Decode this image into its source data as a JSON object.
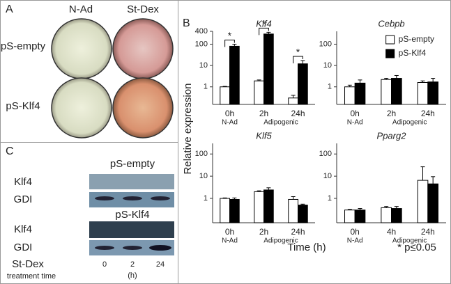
{
  "panel_a": {
    "label": "A",
    "columns": [
      "N-Ad",
      "St-Dex"
    ],
    "rows": [
      "pS-empty",
      "pS-Klf4"
    ]
  },
  "panel_b": {
    "label": "B",
    "y_label": "Relative expression",
    "x_label": "Time (h)",
    "footnote": "* p≤0.05"
  },
  "panel_c": {
    "label": "C",
    "groups": [
      {
        "title": "pS-empty",
        "rows": [
          "Klf4",
          "GDI"
        ]
      },
      {
        "title": "pS-Klf4",
        "rows": [
          "Klf4",
          "GDI"
        ]
      }
    ],
    "treatment": "St-Dex",
    "treatment_sub": "treatment time",
    "times": [
      "0",
      "2",
      "24"
    ],
    "time_unit": "(h)"
  },
  "chart_data": [
    {
      "type": "bar",
      "title": "Klf4",
      "log_scale": true,
      "categories": [
        "0h",
        "2h",
        "24h"
      ],
      "group_labels": [
        "N-Ad",
        "Adipogenic"
      ],
      "ylim": [
        0.15,
        400
      ],
      "yticks": [
        1,
        10,
        100,
        400
      ],
      "series": [
        {
          "color": "#ffffff",
          "values": [
            1,
            1.9,
            0.3
          ],
          "errors": [
            0.05,
            0.2,
            0.1
          ]
        },
        {
          "color": "#000000",
          "values": [
            80,
            300,
            12
          ],
          "errors": [
            20,
            60,
            5
          ]
        }
      ],
      "annotations": [
        "*",
        "*",
        "*"
      ]
    },
    {
      "type": "bar",
      "title": "Cebpb",
      "log_scale": true,
      "categories": [
        "0h",
        "2h",
        "24h"
      ],
      "group_labels": [
        "N-Ad",
        "Adipogenic"
      ],
      "ylim": [
        0.15,
        400
      ],
      "yticks": [
        1,
        10,
        100
      ],
      "legend": "upper right",
      "series": [
        {
          "name": "pS-empty",
          "color": "#ffffff",
          "values": [
            1.0,
            2.2,
            1.6
          ],
          "errors": [
            0.2,
            0.3,
            0.3
          ]
        },
        {
          "name": "pS-Klf4",
          "color": "#000000",
          "values": [
            1.5,
            2.5,
            1.7
          ],
          "errors": [
            0.6,
            0.9,
            0.8
          ]
        }
      ]
    },
    {
      "type": "bar",
      "title": "Klf5",
      "log_scale": true,
      "categories": [
        "0h",
        "2h",
        "24h"
      ],
      "group_labels": [
        "N-Ad",
        "Adipogenic"
      ],
      "ylim": [
        0.08,
        300
      ],
      "yticks": [
        1,
        10,
        100
      ],
      "series": [
        {
          "color": "#ffffff",
          "values": [
            1.0,
            2.0,
            0.9
          ],
          "errors": [
            0.05,
            0.2,
            0.3
          ]
        },
        {
          "color": "#000000",
          "values": [
            0.9,
            2.4,
            0.5
          ],
          "errors": [
            0.15,
            0.6,
            0.05
          ]
        }
      ]
    },
    {
      "type": "bar",
      "title": "Pparg2",
      "log_scale": true,
      "categories": [
        "0h",
        "4h",
        "24h"
      ],
      "group_labels": [
        "N-Ad",
        "Adipogenic"
      ],
      "ylim": [
        0.08,
        300
      ],
      "yticks": [
        1,
        10,
        100
      ],
      "series": [
        {
          "color": "#ffffff",
          "values": [
            0.3,
            0.38,
            6.5
          ],
          "errors": [
            0.02,
            0.05,
            20
          ]
        },
        {
          "color": "#000000",
          "values": [
            0.3,
            0.35,
            4.5
          ],
          "errors": [
            0.05,
            0.08,
            5
          ]
        }
      ]
    }
  ]
}
